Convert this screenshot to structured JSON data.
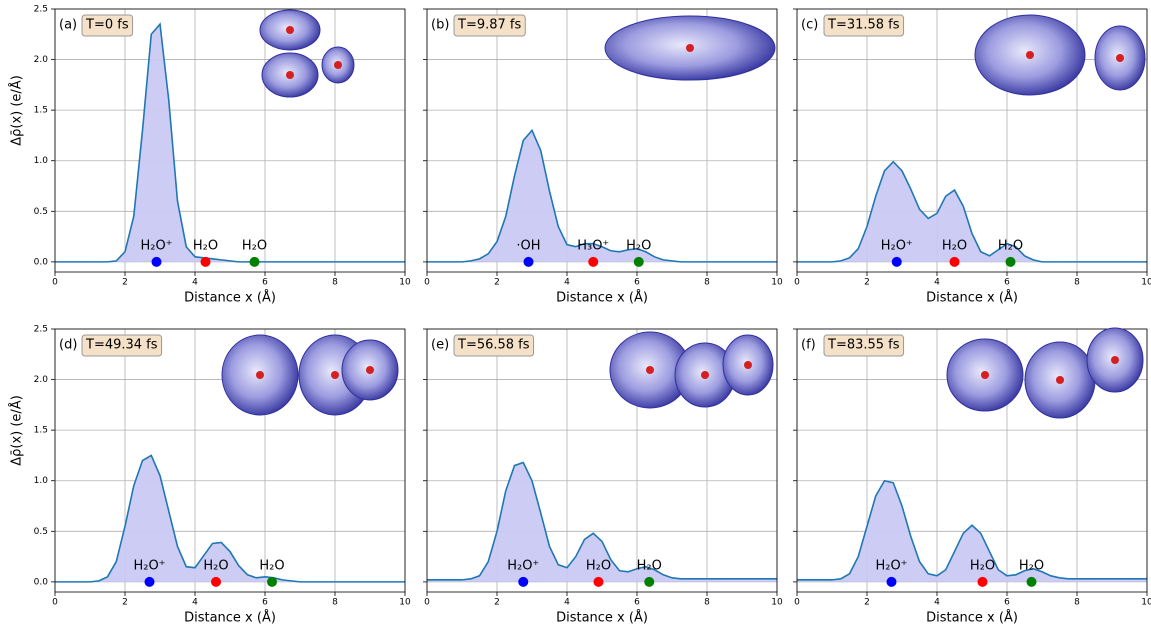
{
  "chart_data": [
    {
      "type": "line",
      "panel": "(a)",
      "time": "T=0 fs",
      "xlabel": "Distance x (Å)",
      "ylabel": "Δρ̄(x) (e/Å)",
      "xlim": [
        0,
        10
      ],
      "ylim": [
        -0.1,
        2.5
      ],
      "xticks": [
        0,
        2,
        4,
        6,
        8,
        10
      ],
      "yticks": [
        {
          "value": 0,
          "label": "0.0"
        },
        {
          "value": 0.5,
          "label": "0.5"
        },
        {
          "value": 1,
          "label": "1.0"
        },
        {
          "value": 1.5,
          "label": "1.5"
        },
        {
          "value": 2,
          "label": "2.0"
        },
        {
          "value": 2.5,
          "label": "2.5"
        }
      ],
      "grid": true,
      "color": "#1f77b4",
      "fill": "#c9c9f4",
      "x": [
        0,
        0.25,
        0.5,
        0.75,
        1,
        1.25,
        1.5,
        1.75,
        2,
        2.25,
        2.5,
        2.75,
        3,
        3.25,
        3.5,
        3.75,
        4,
        4.25,
        4.5,
        4.75,
        5,
        5.25,
        5.5,
        5.75,
        6,
        6.25,
        6.5,
        6.75,
        7,
        7.25,
        7.5,
        7.75,
        8,
        8.25,
        8.5,
        8.75,
        9,
        9.25,
        9.5,
        9.75,
        10
      ],
      "values": [
        0,
        0,
        0,
        0,
        0,
        0,
        0,
        0.01,
        0.1,
        0.45,
        1.3,
        2.25,
        2.35,
        1.6,
        0.6,
        0.15,
        0.05,
        0.04,
        0.03,
        0.02,
        0.01,
        0,
        0,
        0,
        0,
        0,
        0,
        0,
        0,
        0,
        0,
        0,
        0,
        0,
        0,
        0,
        0,
        0,
        0,
        0,
        0
      ],
      "markers": [
        {
          "x": 2.9,
          "label": "H₂O⁺",
          "color": "#0000ff"
        },
        {
          "x": 4.3,
          "label": "H₂O",
          "color": "#ff0000"
        },
        {
          "x": 5.7,
          "label": "H₂O",
          "color": "#008000"
        }
      ]
    },
    {
      "type": "line",
      "panel": "(b)",
      "time": "T=9.87 fs",
      "xlabel": "Distance x (Å)",
      "xlim": [
        0,
        10
      ],
      "ylim": [
        -0.1,
        2.5
      ],
      "xticks": [
        0,
        2,
        4,
        6,
        8,
        10
      ],
      "yticks": [
        0,
        0.5,
        1,
        1.5,
        2,
        2.5
      ],
      "grid": true,
      "color": "#1f77b4",
      "fill": "#c9c9f4",
      "x": [
        0,
        0.25,
        0.5,
        0.75,
        1,
        1.25,
        1.5,
        1.75,
        2,
        2.25,
        2.5,
        2.75,
        3,
        3.25,
        3.5,
        3.75,
        4,
        4.25,
        4.5,
        4.75,
        5,
        5.25,
        5.5,
        5.75,
        6,
        6.25,
        6.5,
        6.75,
        7,
        7.25,
        7.5,
        7.75,
        8,
        8.25,
        8.5,
        8.75,
        9,
        9.25,
        9.5,
        9.75,
        10
      ],
      "values": [
        0,
        0,
        0,
        0,
        0,
        0.01,
        0.03,
        0.08,
        0.2,
        0.45,
        0.85,
        1.2,
        1.3,
        1.1,
        0.7,
        0.35,
        0.17,
        0.15,
        0.18,
        0.18,
        0.15,
        0.11,
        0.1,
        0.12,
        0.13,
        0.1,
        0.05,
        0.02,
        0.01,
        0,
        0,
        0,
        0,
        0,
        0,
        0,
        0,
        0,
        0,
        0,
        0
      ],
      "markers": [
        {
          "x": 2.9,
          "label": "·OH",
          "color": "#0000ff"
        },
        {
          "x": 4.75,
          "label": "H₃O⁺",
          "color": "#ff0000"
        },
        {
          "x": 6.05,
          "label": "H₂O",
          "color": "#008000"
        }
      ]
    },
    {
      "type": "line",
      "panel": "(c)",
      "time": "T=31.58 fs",
      "xlabel": "Distance x (Å)",
      "xlim": [
        0,
        10
      ],
      "ylim": [
        -0.1,
        2.5
      ],
      "xticks": [
        0,
        2,
        4,
        6,
        8,
        10
      ],
      "yticks": [
        0,
        0.5,
        1,
        1.5,
        2,
        2.5
      ],
      "grid": true,
      "color": "#1f77b4",
      "fill": "#c9c9f4",
      "x": [
        0,
        0.25,
        0.5,
        0.75,
        1,
        1.25,
        1.5,
        1.75,
        2,
        2.25,
        2.5,
        2.75,
        3,
        3.25,
        3.5,
        3.75,
        4,
        4.25,
        4.5,
        4.75,
        5,
        5.25,
        5.5,
        5.75,
        6,
        6.25,
        6.5,
        6.75,
        7,
        7.25,
        7.5,
        7.75,
        8,
        8.25,
        8.5,
        8.75,
        9,
        9.25,
        9.5,
        9.75,
        10
      ],
      "values": [
        0,
        0,
        0,
        0,
        0,
        0.01,
        0.04,
        0.13,
        0.35,
        0.65,
        0.9,
        0.99,
        0.9,
        0.72,
        0.52,
        0.43,
        0.48,
        0.65,
        0.71,
        0.55,
        0.28,
        0.1,
        0.06,
        0.12,
        0.18,
        0.15,
        0.06,
        0.02,
        0,
        0,
        0,
        0,
        0,
        0,
        0,
        0,
        0,
        0,
        0,
        0,
        0
      ],
      "markers": [
        {
          "x": 2.85,
          "label": "H₂O⁺",
          "color": "#0000ff"
        },
        {
          "x": 4.5,
          "label": "H₂O",
          "color": "#ff0000"
        },
        {
          "x": 6.1,
          "label": "H₂O",
          "color": "#008000"
        }
      ]
    },
    {
      "type": "line",
      "panel": "(d)",
      "time": "T=49.34 fs",
      "xlabel": "Distance x (Å)",
      "ylabel": "Δρ̄(x) (e/Å)",
      "xlim": [
        0,
        10
      ],
      "ylim": [
        -0.1,
        2.5
      ],
      "xticks": [
        0,
        2,
        4,
        6,
        8,
        10
      ],
      "yticks": [
        {
          "value": 0,
          "label": "0.0"
        },
        {
          "value": 0.5,
          "label": "0.5"
        },
        {
          "value": 1,
          "label": "1.0"
        },
        {
          "value": 1.5,
          "label": "1.5"
        },
        {
          "value": 2,
          "label": "2.0"
        },
        {
          "value": 2.5,
          "label": "2.5"
        }
      ],
      "grid": true,
      "color": "#1f77b4",
      "fill": "#c9c9f4",
      "x": [
        0,
        0.25,
        0.5,
        0.75,
        1,
        1.25,
        1.5,
        1.75,
        2,
        2.25,
        2.5,
        2.75,
        3,
        3.25,
        3.5,
        3.75,
        4,
        4.25,
        4.5,
        4.75,
        5,
        5.25,
        5.5,
        5.75,
        6,
        6.25,
        6.5,
        6.75,
        7,
        7.25,
        7.5,
        7.75,
        8,
        8.25,
        8.5,
        8.75,
        9,
        9.25,
        9.5,
        9.75,
        10
      ],
      "values": [
        0,
        0,
        0,
        0,
        0,
        0.01,
        0.05,
        0.2,
        0.55,
        0.95,
        1.2,
        1.25,
        1.05,
        0.7,
        0.35,
        0.15,
        0.14,
        0.26,
        0.38,
        0.39,
        0.3,
        0.16,
        0.07,
        0.04,
        0.05,
        0.04,
        0.02,
        0.01,
        0,
        0,
        0,
        0,
        0,
        0,
        0,
        0,
        0,
        0,
        0,
        0,
        0
      ],
      "markers": [
        {
          "x": 2.7,
          "label": "H₂O⁺",
          "color": "#0000ff"
        },
        {
          "x": 4.6,
          "label": "H₂O",
          "color": "#ff0000"
        },
        {
          "x": 6.2,
          "label": "H₂O",
          "color": "#008000"
        }
      ]
    },
    {
      "type": "line",
      "panel": "(e)",
      "time": "T=56.58 fs",
      "xlabel": "Distance x (Å)",
      "xlim": [
        0,
        10
      ],
      "ylim": [
        -0.1,
        2.5
      ],
      "xticks": [
        0,
        2,
        4,
        6,
        8,
        10
      ],
      "yticks": [
        0,
        0.5,
        1,
        1.5,
        2,
        2.5
      ],
      "grid": true,
      "color": "#1f77b4",
      "fill": "#c9c9f4",
      "x": [
        0,
        0.25,
        0.5,
        0.75,
        1,
        1.25,
        1.5,
        1.75,
        2,
        2.25,
        2.5,
        2.75,
        3,
        3.25,
        3.5,
        3.75,
        4,
        4.25,
        4.5,
        4.75,
        5,
        5.25,
        5.5,
        5.75,
        6,
        6.25,
        6.5,
        6.75,
        7,
        7.25,
        7.5,
        7.75,
        8,
        8.25,
        8.5,
        8.75,
        9,
        9.25,
        9.5,
        9.75,
        10
      ],
      "values": [
        0.02,
        0.02,
        0.02,
        0.02,
        0.02,
        0.03,
        0.06,
        0.2,
        0.5,
        0.9,
        1.15,
        1.18,
        1,
        0.68,
        0.35,
        0.17,
        0.14,
        0.25,
        0.42,
        0.48,
        0.4,
        0.22,
        0.11,
        0.1,
        0.13,
        0.15,
        0.12,
        0.07,
        0.04,
        0.03,
        0.03,
        0.03,
        0.03,
        0.03,
        0.03,
        0.03,
        0.03,
        0.03,
        0.03,
        0.03,
        0.03
      ],
      "markers": [
        {
          "x": 2.75,
          "label": "H₂O⁺",
          "color": "#0000ff"
        },
        {
          "x": 4.9,
          "label": "H₂O",
          "color": "#ff0000"
        },
        {
          "x": 6.35,
          "label": "H₂O",
          "color": "#008000"
        }
      ]
    },
    {
      "type": "line",
      "panel": "(f)",
      "time": "T=83.55 fs",
      "xlabel": "Distance x (Å)",
      "xlim": [
        0,
        10
      ],
      "ylim": [
        -0.1,
        2.5
      ],
      "xticks": [
        0,
        2,
        4,
        6,
        8,
        10
      ],
      "yticks": [
        0,
        0.5,
        1,
        1.5,
        2,
        2.5
      ],
      "grid": true,
      "color": "#1f77b4",
      "fill": "#c9c9f4",
      "x": [
        0,
        0.25,
        0.5,
        0.75,
        1,
        1.25,
        1.5,
        1.75,
        2,
        2.25,
        2.5,
        2.75,
        3,
        3.25,
        3.5,
        3.75,
        4,
        4.25,
        4.5,
        4.75,
        5,
        5.25,
        5.5,
        5.75,
        6,
        6.25,
        6.5,
        6.75,
        7,
        7.25,
        7.5,
        7.75,
        8,
        8.25,
        8.5,
        8.75,
        9,
        9.25,
        9.5,
        9.75,
        10
      ],
      "values": [
        0.02,
        0.02,
        0.02,
        0.02,
        0.02,
        0.03,
        0.08,
        0.25,
        0.55,
        0.85,
        1,
        0.98,
        0.75,
        0.45,
        0.2,
        0.08,
        0.06,
        0.12,
        0.3,
        0.48,
        0.56,
        0.48,
        0.3,
        0.12,
        0.06,
        0.07,
        0.11,
        0.13,
        0.1,
        0.06,
        0.04,
        0.03,
        0.03,
        0.03,
        0.03,
        0.03,
        0.03,
        0.03,
        0.03,
        0.03,
        0.03
      ],
      "markers": [
        {
          "x": 2.7,
          "label": "H₂O⁺",
          "color": "#0000ff"
        },
        {
          "x": 5.3,
          "label": "H₂O",
          "color": "#ff0000"
        },
        {
          "x": 6.7,
          "label": "H₂O",
          "color": "#008000"
        }
      ]
    }
  ]
}
